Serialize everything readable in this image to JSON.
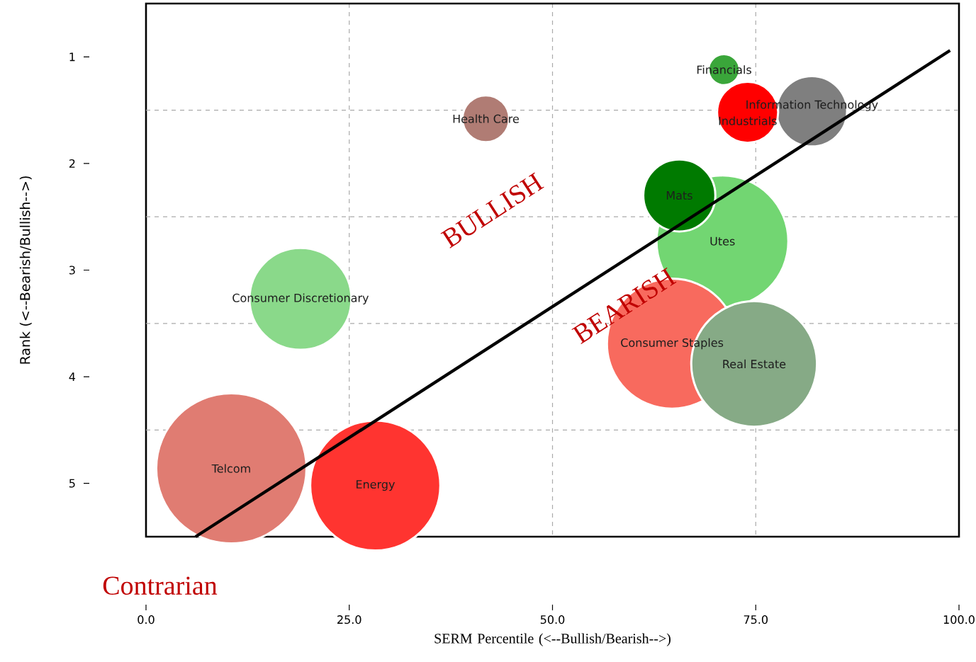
{
  "chart_data": {
    "type": "bubble",
    "xlabel": "SERM Percentile (<--Bullish/Bearish-->)",
    "ylabel": "Rank (<--Bearish/Bullish-->)",
    "xlim": [
      0,
      100
    ],
    "ylim": [
      5.5,
      0.5
    ],
    "xticks": [
      {
        "value": 0,
        "label": "0.0"
      },
      {
        "value": 25,
        "label": "25.0"
      },
      {
        "value": 50,
        "label": "50.0"
      },
      {
        "value": 75,
        "label": "75.0"
      },
      {
        "value": 100,
        "label": "100.0"
      }
    ],
    "yticks": [
      1,
      2,
      3,
      4,
      5
    ],
    "grid": "x",
    "ref_lines": [
      {
        "axis": "y",
        "value": 1.5,
        "color": "#aaaaaa",
        "line_style": "dashed"
      },
      {
        "axis": "y",
        "value": 2.5,
        "color": "#aaaaaa",
        "line_style": "dashed"
      },
      {
        "axis": "y",
        "value": 3.5,
        "color": "#aaaaaa",
        "line_style": "dashed"
      },
      {
        "axis": "y",
        "value": 4.5,
        "color": "#aaaaaa",
        "line_style": "dashed"
      }
    ],
    "series": [
      {
        "name": "Telcom",
        "color": "#e07c72",
        "x": [
          10.5
        ],
        "values": [
          4.86
        ],
        "sizes": [
          1.0
        ]
      },
      {
        "name": "Energy",
        "color": "#ff3430",
        "x": [
          28.2
        ],
        "values": [
          5.02
        ],
        "sizes": [
          0.75
        ]
      },
      {
        "name": "Consumer Discretionary",
        "color": "#8ad98a",
        "x": [
          19.0
        ],
        "values": [
          3.27
        ],
        "sizes": [
          0.46
        ]
      },
      {
        "name": "Health Care",
        "color": "#b07c74",
        "x": [
          41.8
        ],
        "values": [
          1.58
        ],
        "sizes": [
          0.097
        ]
      },
      {
        "name": "Utes",
        "color": "#72d672",
        "x": [
          70.9
        ],
        "values": [
          2.73
        ],
        "sizes": [
          0.77
        ]
      },
      {
        "name": "Mats",
        "color": "#007a00",
        "x": [
          65.6
        ],
        "values": [
          2.3
        ],
        "sizes": [
          0.23
        ]
      },
      {
        "name": "Consumer Staples",
        "color": "#f86a5e",
        "x": [
          64.7
        ],
        "values": [
          3.69
        ],
        "sizes": [
          0.75
        ]
      },
      {
        "name": "Real Estate",
        "color": "#86aa86",
        "x": [
          74.8
        ],
        "values": [
          3.88
        ],
        "sizes": [
          0.7
        ]
      },
      {
        "name": "Financials",
        "color": "#3aa63a",
        "x": [
          71.1
        ],
        "values": [
          1.12
        ],
        "sizes": [
          0.043
        ]
      },
      {
        "name": "Information Technology",
        "color": "#7f7f7f",
        "x": [
          81.9
        ],
        "values": [
          1.51
        ],
        "sizes": [
          0.22
        ]
      },
      {
        "name": "Industrials",
        "color": "#ff0000",
        "x": [
          74.0
        ],
        "values": [
          1.52
        ],
        "sizes": [
          0.165
        ]
      },
      {
        "type": "line",
        "color": "#000000",
        "x": [
          6.1,
          98.9
        ],
        "values": [
          5.5,
          0.94
        ]
      }
    ],
    "annotations": [
      "BULLISH",
      "BEARISH",
      "Contrarian"
    ]
  }
}
